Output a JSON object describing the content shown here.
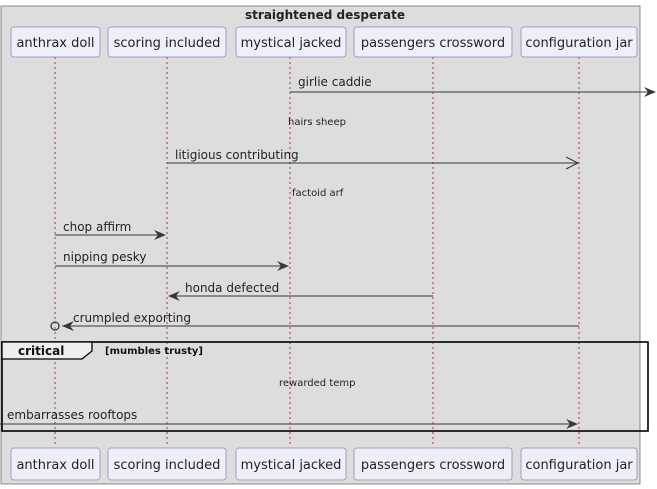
{
  "diagram": {
    "box_title": "straightened desperate",
    "participants": [
      {
        "label": "anthrax doll"
      },
      {
        "label": "scoring included"
      },
      {
        "label": "mystical jacked"
      },
      {
        "label": "passengers crossword"
      },
      {
        "label": "configuration jar"
      }
    ],
    "messages": [
      {
        "label": "girlie caddie",
        "from": "mystical jacked",
        "to": "(outside)",
        "style": "solid"
      },
      {
        "label": "litigious contributing",
        "from": "scoring included",
        "to": "configuration jar",
        "style": "open-arrow"
      },
      {
        "label": "chop affirm",
        "from": "anthrax doll",
        "to": "scoring included",
        "style": "solid"
      },
      {
        "label": "nipping pesky",
        "from": "anthrax doll",
        "to": "mystical jacked",
        "style": "solid"
      },
      {
        "label": "honda defected",
        "from": "passengers crossword",
        "to": "scoring included",
        "style": "solid"
      },
      {
        "label": "crumpled exporting",
        "from": "configuration jar",
        "to": "anthrax doll",
        "style": "lost-circle"
      },
      {
        "label": "embarrasses rooftops",
        "from": "(outside)",
        "to": "configuration jar",
        "style": "solid"
      }
    ],
    "delays": [
      {
        "label": "hairs sheep"
      },
      {
        "label": "factoid arf"
      },
      {
        "label": "rewarded temp"
      }
    ],
    "fragment": {
      "kind": "critical",
      "condition": "[mumbles trusty]"
    }
  }
}
